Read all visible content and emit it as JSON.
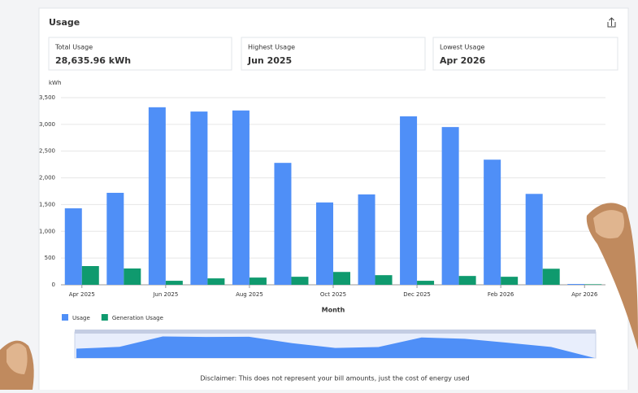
{
  "header": {
    "title": "Usage"
  },
  "cards": [
    {
      "label": "Total Usage",
      "value": "28,635.96 kWh"
    },
    {
      "label": "Highest Usage",
      "value": "Jun 2025"
    },
    {
      "label": "Lowest Usage",
      "value": "Apr 2026"
    }
  ],
  "disclaimer": "Disclaimer: This does not represent your bill amounts, just the cost of energy used",
  "chart_data": {
    "type": "bar",
    "y_label": "kWh",
    "x_label": "Month",
    "categories": [
      "Apr 2025",
      null,
      "Jun 2025",
      null,
      "Aug 2025",
      null,
      "Oct 2025",
      null,
      "Dec 2025",
      null,
      "Feb 2026",
      null,
      "Apr 2026"
    ],
    "series": [
      {
        "name": "Usage",
        "color": "#4f8ff7",
        "values": [
          1430,
          1720,
          3320,
          3240,
          3260,
          2280,
          1540,
          1690,
          3150,
          2950,
          2340,
          1700,
          15
        ]
      },
      {
        "name": "Generation Usage",
        "color": "#0f9a6e",
        "values": [
          350,
          305,
          75,
          120,
          135,
          150,
          240,
          180,
          75,
          165,
          150,
          300,
          10
        ]
      }
    ],
    "ylim": [
      0,
      3500
    ],
    "yticks": [
      0,
      500,
      {
        "value": 1000,
        "label": "1,000"
      },
      {
        "value": 1500,
        "label": "1,500"
      },
      {
        "value": 2000,
        "label": "2,000"
      },
      {
        "value": 2500,
        "label": "2,500"
      },
      {
        "value": 3000,
        "label": "3,000"
      },
      {
        "value": 3500,
        "label": "3,500"
      }
    ],
    "grid": true,
    "legend": "bottom-left"
  }
}
